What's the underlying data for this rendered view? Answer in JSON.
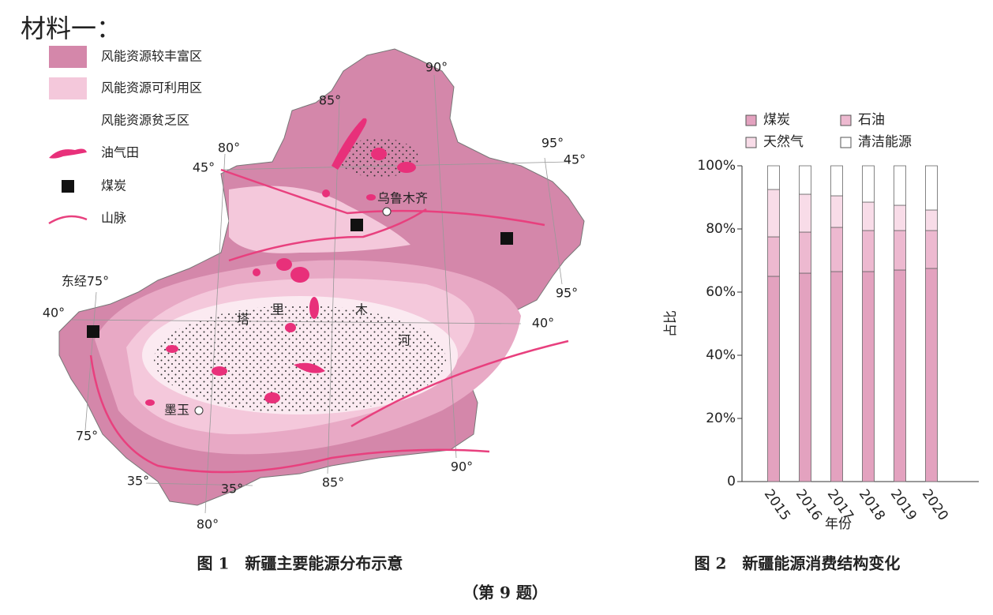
{
  "header": {
    "title": "材料一："
  },
  "map": {
    "legend": [
      "风能资源较丰富区",
      "风能资源可利用区",
      "风能资源贫乏区",
      "油气田",
      "煤炭",
      "山脉"
    ],
    "labels": [
      "90°",
      "85°",
      "80°",
      "45°",
      "95°",
      "45°",
      "乌鲁木齐",
      "东经75°",
      "40°",
      "95°",
      "40°",
      "塔",
      "里",
      "木",
      "河",
      "墨玉",
      "75°",
      "35°",
      "35°",
      "85°",
      "90°",
      "80°"
    ],
    "caption": "图 1　新疆主要能源分布示意"
  },
  "chart_data": {
    "type": "bar",
    "stacked": true,
    "caption": "图 2　新疆能源消费结构变化",
    "categories": [
      "2015",
      "2016",
      "2017",
      "2018",
      "2019",
      "2020"
    ],
    "series": [
      {
        "name": "煤炭",
        "color": "#e3a2bf",
        "values": [
          65,
          66,
          66.5,
          66.5,
          67,
          67.5
        ]
      },
      {
        "name": "石油",
        "color": "#edb9d0",
        "values": [
          12.5,
          13,
          14,
          13,
          12.5,
          12
        ]
      },
      {
        "name": "天然气",
        "color": "#f8dce8",
        "values": [
          15,
          12,
          10,
          9,
          8,
          6.5
        ]
      },
      {
        "name": "清洁能源",
        "color": "#ffffff",
        "values": [
          7.5,
          9,
          9.5,
          11.5,
          12.5,
          14
        ]
      }
    ],
    "ylim": [
      0,
      100
    ],
    "yticks": [
      0,
      {
        "value": 20,
        "label": "20%"
      },
      {
        "value": 40,
        "label": "40%"
      },
      {
        "value": 60,
        "label": "60%"
      },
      {
        "value": 80,
        "label": "80%"
      },
      {
        "value": 100,
        "label": "100%"
      }
    ],
    "xlabel": "年份",
    "ylabel": "占比"
  },
  "footer": "（第 9 题）"
}
